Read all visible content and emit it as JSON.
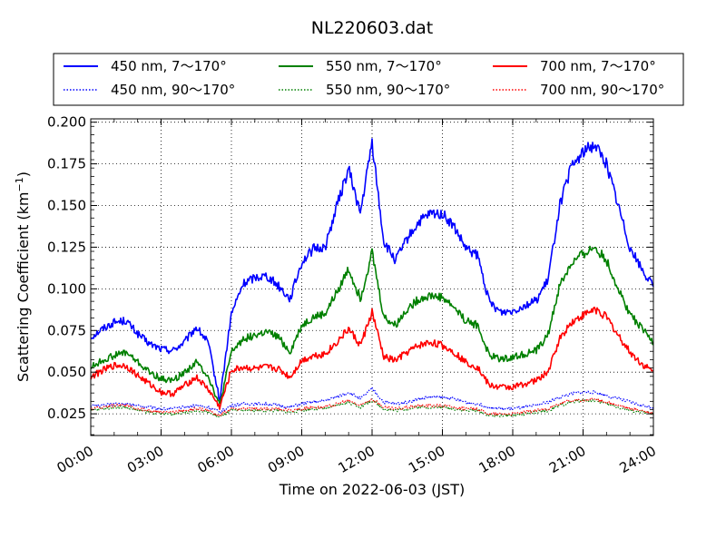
{
  "chart_data": {
    "type": "line",
    "title": "NL220603.dat",
    "xlabel": "Time on 2022-06-03 (JST)",
    "ylabel": "Scattering Coefficient (km",
    "ylabel_exponent": "−1",
    "ylabel_suffix": ")",
    "xlim": [
      "00:00",
      "24:00"
    ],
    "ylim": [
      0.012,
      0.202
    ],
    "grid": true,
    "legend_position": "top",
    "x_ticks": [
      "00:00",
      "03:00",
      "06:00",
      "09:00",
      "12:00",
      "15:00",
      "18:00",
      "21:00",
      "24:00"
    ],
    "y_ticks": [
      "0.025",
      "0.050",
      "0.075",
      "0.100",
      "0.125",
      "0.150",
      "0.175",
      "0.200"
    ],
    "x_hours": [
      0,
      0.5,
      1,
      1.5,
      2,
      2.5,
      3,
      3.5,
      4,
      4.5,
      5,
      5.5,
      6,
      6.5,
      7,
      7.5,
      8,
      8.5,
      9,
      9.5,
      10,
      10.5,
      11,
      11.5,
      12,
      12.5,
      13,
      13.5,
      14,
      14.5,
      15,
      15.5,
      16,
      16.5,
      17,
      17.5,
      18,
      18.5,
      19,
      19.5,
      20,
      20.5,
      21,
      21.5,
      22,
      22.5,
      23,
      23.5,
      24
    ],
    "series": [
      {
        "name": "450 nm, 7～170°",
        "color": "#0000ff",
        "style": "solid",
        "values": [
          0.071,
          0.076,
          0.08,
          0.081,
          0.073,
          0.067,
          0.064,
          0.063,
          0.068,
          0.077,
          0.068,
          0.033,
          0.085,
          0.103,
          0.107,
          0.108,
          0.102,
          0.094,
          0.116,
          0.124,
          0.125,
          0.15,
          0.172,
          0.145,
          0.188,
          0.128,
          0.117,
          0.13,
          0.14,
          0.145,
          0.145,
          0.137,
          0.124,
          0.12,
          0.092,
          0.086,
          0.087,
          0.09,
          0.093,
          0.105,
          0.15,
          0.173,
          0.182,
          0.187,
          0.175,
          0.15,
          0.125,
          0.112,
          0.101
        ]
      },
      {
        "name": "550 nm, 7～170°",
        "color": "#008000",
        "style": "solid",
        "values": [
          0.053,
          0.057,
          0.06,
          0.062,
          0.056,
          0.05,
          0.046,
          0.045,
          0.05,
          0.056,
          0.048,
          0.03,
          0.062,
          0.07,
          0.072,
          0.074,
          0.071,
          0.062,
          0.078,
          0.083,
          0.085,
          0.098,
          0.112,
          0.094,
          0.122,
          0.083,
          0.078,
          0.088,
          0.094,
          0.096,
          0.095,
          0.089,
          0.081,
          0.078,
          0.06,
          0.058,
          0.059,
          0.061,
          0.063,
          0.072,
          0.102,
          0.115,
          0.121,
          0.125,
          0.117,
          0.1,
          0.085,
          0.076,
          0.068
        ]
      },
      {
        "name": "700 nm, 7～170°",
        "color": "#ff0000",
        "style": "solid",
        "values": [
          0.047,
          0.051,
          0.054,
          0.054,
          0.048,
          0.043,
          0.038,
          0.037,
          0.042,
          0.047,
          0.04,
          0.029,
          0.051,
          0.053,
          0.052,
          0.053,
          0.052,
          0.047,
          0.057,
          0.06,
          0.061,
          0.068,
          0.076,
          0.066,
          0.086,
          0.059,
          0.057,
          0.062,
          0.066,
          0.068,
          0.066,
          0.062,
          0.056,
          0.053,
          0.042,
          0.041,
          0.041,
          0.043,
          0.045,
          0.05,
          0.07,
          0.08,
          0.084,
          0.088,
          0.083,
          0.072,
          0.062,
          0.055,
          0.05
        ]
      },
      {
        "name": "450 nm, 90～170°",
        "color": "#0000ff",
        "style": "dotted",
        "values": [
          0.03,
          0.03,
          0.031,
          0.031,
          0.03,
          0.029,
          0.028,
          0.028,
          0.029,
          0.03,
          0.029,
          0.026,
          0.03,
          0.031,
          0.031,
          0.031,
          0.03,
          0.029,
          0.031,
          0.032,
          0.033,
          0.035,
          0.038,
          0.034,
          0.04,
          0.032,
          0.031,
          0.032,
          0.034,
          0.035,
          0.035,
          0.034,
          0.032,
          0.031,
          0.029,
          0.028,
          0.028,
          0.029,
          0.03,
          0.032,
          0.035,
          0.037,
          0.038,
          0.038,
          0.036,
          0.034,
          0.032,
          0.03,
          0.029
        ]
      },
      {
        "name": "550 nm, 90～170°",
        "color": "#008000",
        "style": "dotted",
        "values": [
          0.027,
          0.028,
          0.029,
          0.029,
          0.027,
          0.026,
          0.025,
          0.025,
          0.026,
          0.027,
          0.026,
          0.023,
          0.027,
          0.027,
          0.027,
          0.027,
          0.027,
          0.026,
          0.027,
          0.028,
          0.028,
          0.03,
          0.032,
          0.029,
          0.033,
          0.028,
          0.027,
          0.028,
          0.029,
          0.029,
          0.029,
          0.028,
          0.027,
          0.027,
          0.024,
          0.024,
          0.024,
          0.025,
          0.026,
          0.027,
          0.03,
          0.032,
          0.033,
          0.033,
          0.031,
          0.029,
          0.027,
          0.026,
          0.025
        ]
      },
      {
        "name": "700 nm, 90～170°",
        "color": "#ff0000",
        "style": "dotted",
        "values": [
          0.028,
          0.029,
          0.03,
          0.03,
          0.028,
          0.027,
          0.026,
          0.026,
          0.027,
          0.028,
          0.027,
          0.024,
          0.028,
          0.028,
          0.028,
          0.028,
          0.028,
          0.027,
          0.028,
          0.029,
          0.029,
          0.031,
          0.033,
          0.03,
          0.034,
          0.029,
          0.028,
          0.029,
          0.03,
          0.03,
          0.03,
          0.029,
          0.028,
          0.028,
          0.025,
          0.025,
          0.025,
          0.026,
          0.027,
          0.028,
          0.031,
          0.033,
          0.033,
          0.034,
          0.032,
          0.03,
          0.028,
          0.027,
          0.025
        ]
      }
    ]
  }
}
